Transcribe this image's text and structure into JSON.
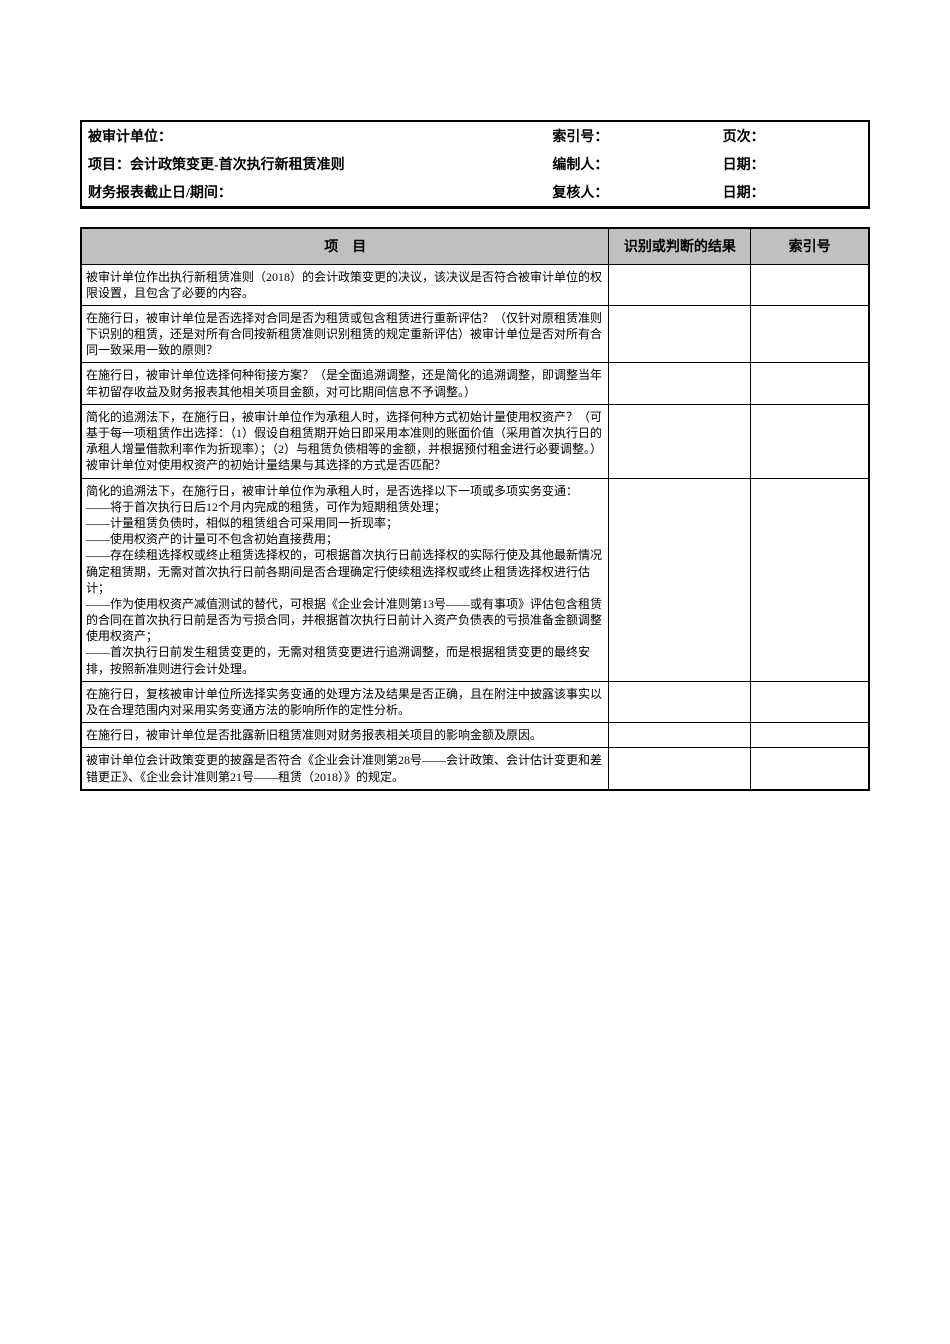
{
  "header": {
    "row1": {
      "left": "被审计单位：",
      "mid": "索引号：",
      "right": "页次："
    },
    "row2": {
      "left": "项目：会计政策变更-首次执行新租赁准则",
      "mid": "编制人：",
      "right": "日期："
    },
    "row3": {
      "left": "财务报表截止日/期间：",
      "mid": "复核人：",
      "right": "日期："
    }
  },
  "table": {
    "headers": {
      "item": "项　目",
      "result": "识别或判断的结果",
      "index": "索引号"
    },
    "rows": [
      {
        "item": "被审计单位作出执行新租赁准则（2018）的会计政策变更的决议，该决议是否符合被审计单位的权限设置，且包含了必要的内容。",
        "result": "",
        "index": ""
      },
      {
        "item": "在施行日，被审计单位是否选择对合同是否为租赁或包含租赁进行重新评估？（仅针对原租赁准则下识别的租赁，还是对所有合同按新租赁准则识别租赁的规定重新评估）被审计单位是否对所有合同一致采用一致的原则？",
        "result": "",
        "index": ""
      },
      {
        "item": "在施行日，被审计单位选择何种衔接方案？（是全面追溯调整，还是简化的追溯调整，即调整当年年初留存收益及财务报表其他相关项目金额，对可比期间信息不予调整。）",
        "result": "",
        "index": ""
      },
      {
        "item": "简化的追溯法下，在施行日，被审计单位作为承租人时，选择何种方式初始计量使用权资产？（可基于每一项租赁作出选择：（1）假设自租赁期开始日即采用本准则的账面价值（采用首次执行日的承租人增量借款利率作为折现率）；（2）与租赁负债相等的金额，并根据预付租金进行必要调整。）被审计单位对使用权资产的初始计量结果与其选择的方式是否匹配？",
        "result": "",
        "index": ""
      },
      {
        "item": "简化的追溯法下，在施行日，被审计单位作为承租人时，是否选择以下一项或多项实务变通：\n——将于首次执行日后12个月内完成的租赁，可作为短期租赁处理；\n——计量租赁负债时，相似的租赁组合可采用同一折现率；\n——使用权资产的计量可不包含初始直接费用；\n——存在续租选择权或终止租赁选择权的，可根据首次执行日前选择权的实际行使及其他最新情况确定租赁期，无需对首次执行日前各期间是否合理确定行使续租选择权或终止租赁选择权进行估计；\n——作为使用权资产减值测试的替代，可根据《企业会计准则第13号——或有事项》评估包含租赁的合同在首次执行日前是否为亏损合同，并根据首次执行日前计入资产负债表的亏损准备金额调整使用权资产；\n——首次执行日前发生租赁变更的，无需对租赁变更进行追溯调整，而是根据租赁变更的最终安排，按照新准则进行会计处理。",
        "result": "",
        "index": ""
      },
      {
        "item": "在施行日，复核被审计单位所选择实务变通的处理方法及结果是否正确，且在附注中披露该事实以及在合理范围内对采用实务变通方法的影响所作的定性分析。",
        "result": "",
        "index": ""
      },
      {
        "item": "在施行日，被审计单位是否批露新旧租赁准则对财务报表相关项目的影响金额及原因。",
        "result": "",
        "index": ""
      },
      {
        "item": "被审计单位会计政策变更的披露是否符合《企业会计准则第28号——会计政策、会计估计变更和差错更正》、《企业会计准则第21号——租赁（2018）》的规定。",
        "result": "",
        "index": ""
      }
    ]
  }
}
